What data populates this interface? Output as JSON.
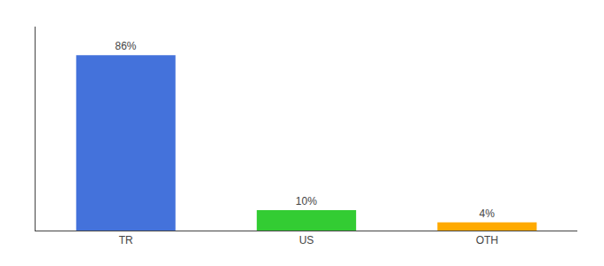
{
  "chart_data": {
    "type": "bar",
    "categories": [
      "TR",
      "US",
      "OTH"
    ],
    "values": [
      86,
      10,
      4
    ],
    "value_labels": [
      "86%",
      "10%",
      "4%"
    ],
    "colors": [
      "#4472db",
      "#33cc33",
      "#ffaa00"
    ],
    "ylim": [
      0,
      100
    ],
    "data_labels": true,
    "tick_labels": "x",
    "grid": false
  }
}
